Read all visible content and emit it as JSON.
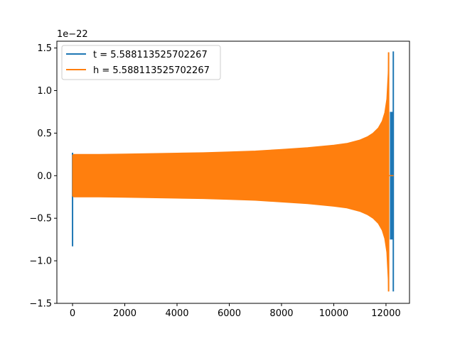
{
  "chart_data": {
    "type": "line",
    "offset_label": "1e−22",
    "x_ticks": [
      "0",
      "2000",
      "4000",
      "6000",
      "8000",
      "10000",
      "12000"
    ],
    "y_ticks": [
      "−1.5",
      "−1.0",
      "−0.5",
      "0.0",
      "0.5",
      "1.0",
      "1.5"
    ],
    "xlim": [
      -600,
      12900
    ],
    "ylim": [
      -1.5,
      1.58
    ],
    "legend_position": "upper-left",
    "grid": false,
    "series": [
      {
        "name": "t = 5.588113525702267",
        "color": "#1f77b4",
        "spikes": [
          {
            "x": 0,
            "min": -0.83,
            "max": 0.27
          },
          {
            "x": 12280,
            "min": -1.36,
            "max": 1.46
          }
        ],
        "dense_band": {
          "x_start": 12150,
          "x_end": 12290,
          "min": -1.36,
          "max": 1.46
        }
      },
      {
        "name": "h = 5.588113525702267",
        "color": "#ff7f0e",
        "envelope": {
          "x": [
            0,
            50,
            1000,
            2000,
            3000,
            4000,
            5000,
            6000,
            7000,
            8000,
            9000,
            10000,
            10500,
            11000,
            11300,
            11500,
            11700,
            11850,
            11950,
            12030,
            12080,
            12100
          ],
          "max": [
            0.24,
            0.25,
            0.25,
            0.255,
            0.26,
            0.265,
            0.27,
            0.28,
            0.29,
            0.31,
            0.33,
            0.36,
            0.38,
            0.42,
            0.46,
            0.5,
            0.56,
            0.64,
            0.74,
            0.9,
            1.2,
            1.45
          ],
          "min": [
            -0.24,
            -0.25,
            -0.25,
            -0.255,
            -0.26,
            -0.265,
            -0.27,
            -0.28,
            -0.29,
            -0.31,
            -0.33,
            -0.36,
            -0.38,
            -0.42,
            -0.46,
            -0.5,
            -0.56,
            -0.64,
            -0.74,
            -0.9,
            -1.2,
            -1.36
          ]
        },
        "tail_zero": {
          "x_start": 12100,
          "x_end": 12290,
          "y": 0.0
        }
      }
    ]
  }
}
